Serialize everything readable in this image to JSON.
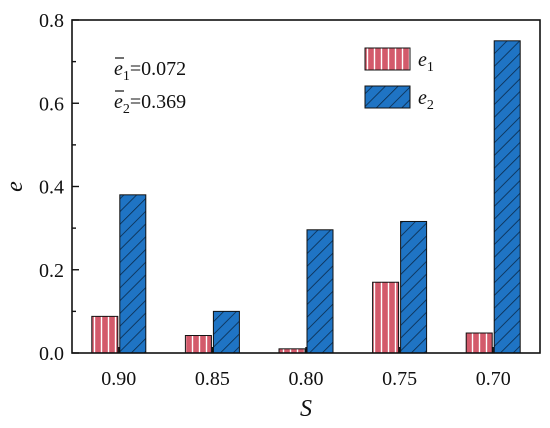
{
  "chart_data": {
    "type": "bar",
    "categories": [
      "0.90",
      "0.85",
      "0.80",
      "0.75",
      "0.70"
    ],
    "series": [
      {
        "name": "e1",
        "symbol": "e",
        "subscript": "1",
        "color": "#d35a6b",
        "pattern": "vertical-stripes",
        "values": [
          0.088,
          0.042,
          0.01,
          0.17,
          0.048
        ]
      },
      {
        "name": "e2",
        "symbol": "e",
        "subscript": "2",
        "color": "#1f74c4",
        "pattern": "diagonal-hatch",
        "values": [
          0.38,
          0.1,
          0.296,
          0.316,
          0.75
        ]
      }
    ],
    "xlabel": "S",
    "ylabel": "e",
    "ylim": [
      0,
      0.8
    ],
    "yticks": [
      "0.0",
      "0.2",
      "0.4",
      "0.6",
      "0.8"
    ],
    "legend_position": "top-right",
    "annotations": [
      {
        "symbol": "e",
        "subscript": "1",
        "equals": "=0.072",
        "overbar": true
      },
      {
        "symbol": "e",
        "subscript": "2",
        "equals": "=0.369",
        "overbar": true
      }
    ],
    "grid": false
  }
}
